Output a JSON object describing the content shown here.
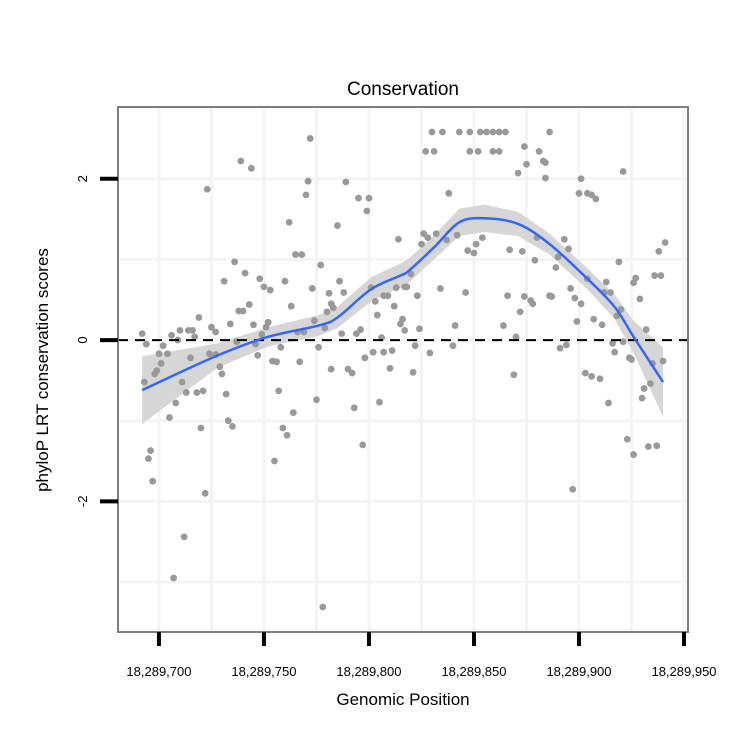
{
  "chart_data": {
    "type": "scatter",
    "title": "Conservation",
    "xlabel": "Genomic Position",
    "ylabel": "phyloP LRT conservation scores",
    "xlim": [
      18289680.5,
      18289951.9
    ],
    "ylim": [
      -3.62,
      2.89
    ],
    "x_ticks": [
      18289700,
      18289750,
      18289800,
      18289850,
      18289900,
      18289950
    ],
    "x_tick_labels": [
      "18,289,700",
      "18,289,750",
      "18,289,800",
      "18,289,850",
      "18,289,900",
      "18,289,950"
    ],
    "y_ticks": [
      -2,
      0,
      2
    ],
    "y_tick_labels": [
      "-2",
      "0",
      "2"
    ],
    "grid": true,
    "reference_line": {
      "y": 0,
      "style": "dashed"
    },
    "colors": {
      "points": "#999999",
      "smooth": "#3366FF",
      "band": "#d4d4d4",
      "refline": "#000000"
    },
    "points_x_base": 18289700,
    "points": [
      [
        -8,
        0.08
      ],
      [
        -6,
        -0.05
      ],
      [
        -7,
        -0.52
      ],
      [
        2,
        -0.07
      ],
      [
        4,
        -0.17
      ],
      [
        0,
        -0.17
      ],
      [
        1,
        -0.29
      ],
      [
        -1,
        -0.38
      ],
      [
        -2,
        -0.42
      ],
      [
        6,
        0.06
      ],
      [
        10,
        0.12
      ],
      [
        9,
        0.0
      ],
      [
        14,
        0.12
      ],
      [
        16,
        0.12
      ],
      [
        17,
        0.04
      ],
      [
        15,
        -0.22
      ],
      [
        11,
        -0.52
      ],
      [
        13,
        -0.65
      ],
      [
        18,
        -0.65
      ],
      [
        21,
        -0.63
      ],
      [
        8,
        -0.78
      ],
      [
        5,
        -0.96
      ],
      [
        -4,
        -1.37
      ],
      [
        -5,
        -1.47
      ],
      [
        -3,
        -1.75
      ],
      [
        20,
        -1.09
      ],
      [
        22,
        -1.9
      ],
      [
        12,
        -2.44
      ],
      [
        7,
        -2.95
      ],
      [
        19,
        0.28
      ],
      [
        23,
        1.87
      ],
      [
        25,
        0.16
      ],
      [
        27,
        0.1
      ],
      [
        24,
        -0.17
      ],
      [
        27,
        -0.18
      ],
      [
        29,
        -0.33
      ],
      [
        30,
        -0.42
      ],
      [
        32,
        -0.67
      ],
      [
        33,
        -1.0
      ],
      [
        35,
        -1.07
      ],
      [
        31,
        0.73
      ],
      [
        36,
        0.97
      ],
      [
        41,
        0.83
      ],
      [
        39,
        2.22
      ],
      [
        44,
        2.13
      ],
      [
        34,
        0.2
      ],
      [
        37,
        -0.02
      ],
      [
        38,
        0.36
      ],
      [
        40,
        0.36
      ],
      [
        43,
        0.44
      ],
      [
        45,
        0.19
      ],
      [
        48,
        0.76
      ],
      [
        50,
        0.66
      ],
      [
        53,
        0.62
      ],
      [
        52,
        0.22
      ],
      [
        51,
        0.16
      ],
      [
        49,
        0.07
      ],
      [
        46,
        -0.05
      ],
      [
        47,
        -0.19
      ],
      [
        54,
        -0.26
      ],
      [
        56,
        -0.27
      ],
      [
        58,
        -0.09
      ],
      [
        57,
        -0.63
      ],
      [
        59,
        -1.09
      ],
      [
        61,
        -1.18
      ],
      [
        55,
        -1.5
      ],
      [
        60,
        0.73
      ],
      [
        62,
        1.46
      ],
      [
        63,
        0.42
      ],
      [
        65,
        1.06
      ],
      [
        68,
        1.06
      ],
      [
        67,
        -0.27
      ],
      [
        66,
        0.1
      ],
      [
        69,
        0.1
      ],
      [
        64,
        -0.9
      ],
      [
        72,
        2.5
      ],
      [
        71,
        1.97
      ],
      [
        70,
        1.8
      ],
      [
        73,
        0.64
      ],
      [
        74,
        0.24
      ],
      [
        76,
        -0.09
      ],
      [
        75,
        -0.74
      ],
      [
        77,
        0.93
      ],
      [
        78,
        -3.31
      ],
      [
        79,
        0.15
      ],
      [
        80,
        0.35
      ],
      [
        81,
        0.58
      ],
      [
        83,
        0.4
      ],
      [
        82,
        0.45
      ],
      [
        85,
        1.42
      ],
      [
        86,
        0.73
      ],
      [
        88,
        0.59
      ],
      [
        87,
        0.08
      ],
      [
        89,
        1.96
      ],
      [
        82,
        -0.36
      ],
      [
        90,
        -0.36
      ],
      [
        92,
        -0.41
      ],
      [
        93,
        -0.84
      ],
      [
        95,
        1.76
      ],
      [
        100,
        1.76
      ],
      [
        99,
        1.6
      ],
      [
        101,
        0.65
      ],
      [
        103,
        0.48
      ],
      [
        104,
        0.31
      ],
      [
        106,
        0.03
      ],
      [
        94,
        0.08
      ],
      [
        96,
        0.13
      ],
      [
        98,
        -0.22
      ],
      [
        102,
        -0.15
      ],
      [
        107,
        -0.15
      ],
      [
        111,
        -0.13
      ],
      [
        110,
        -0.35
      ],
      [
        105,
        -0.77
      ],
      [
        97,
        -1.3
      ],
      [
        107,
        0.55
      ],
      [
        109,
        0.55
      ],
      [
        112,
        0.42
      ],
      [
        113,
        0.65
      ],
      [
        117,
        0.66
      ],
      [
        114,
        1.25
      ],
      [
        116,
        0.26
      ],
      [
        115,
        0.2
      ],
      [
        117,
        0.12
      ],
      [
        130,
        2.58
      ],
      [
        135,
        2.58
      ],
      [
        143,
        2.58
      ],
      [
        148,
        2.58
      ],
      [
        153,
        2.58
      ],
      [
        156,
        2.58
      ],
      [
        159,
        2.58
      ],
      [
        162,
        2.58
      ],
      [
        165,
        2.58
      ],
      [
        186,
        2.58
      ],
      [
        127,
        2.34
      ],
      [
        131,
        2.34
      ],
      [
        148,
        2.34
      ],
      [
        152,
        2.34
      ],
      [
        159,
        2.34
      ],
      [
        162,
        2.34
      ],
      [
        174,
        2.4
      ],
      [
        181,
        2.34
      ],
      [
        175,
        2.18
      ],
      [
        183,
        2.22
      ],
      [
        184,
        2.2
      ],
      [
        171,
        2.07
      ],
      [
        184,
        2.01
      ],
      [
        201,
        2.0
      ],
      [
        221,
        2.09
      ],
      [
        200,
        1.82
      ],
      [
        204,
        1.82
      ],
      [
        206,
        1.8
      ],
      [
        208,
        1.75
      ],
      [
        138,
        1.82
      ],
      [
        126,
        1.32
      ],
      [
        128,
        1.27
      ],
      [
        132,
        1.32
      ],
      [
        125,
        1.19
      ],
      [
        137,
        1.24
      ],
      [
        142,
        1.3
      ],
      [
        154,
        1.27
      ],
      [
        151,
        1.19
      ],
      [
        147,
        1.11
      ],
      [
        150,
        1.08
      ],
      [
        167,
        1.12
      ],
      [
        173,
        1.1
      ],
      [
        179,
        0.99
      ],
      [
        180,
        1.27
      ],
      [
        193,
        1.25
      ],
      [
        195,
        1.13
      ],
      [
        190,
        1.03
      ],
      [
        189,
        0.9
      ],
      [
        120,
        0.82
      ],
      [
        118,
        0.66
      ],
      [
        123,
        0.55
      ],
      [
        134,
        0.64
      ],
      [
        146,
        0.59
      ],
      [
        166,
        0.55
      ],
      [
        174,
        0.54
      ],
      [
        177,
        0.49
      ],
      [
        178,
        0.45
      ],
      [
        186,
        0.55
      ],
      [
        187,
        0.54
      ],
      [
        196,
        0.64
      ],
      [
        198,
        0.52
      ],
      [
        201,
        0.45
      ],
      [
        204,
        0.76
      ],
      [
        213,
        0.72
      ],
      [
        212,
        0.59
      ],
      [
        215,
        0.59
      ],
      [
        219,
        0.97
      ],
      [
        227,
        0.77
      ],
      [
        226,
        0.71
      ],
      [
        229,
        0.51
      ],
      [
        236,
        0.8
      ],
      [
        239,
        0.8
      ],
      [
        238,
        1.1
      ],
      [
        241,
        1.21
      ],
      [
        172,
        0.35
      ],
      [
        164,
        0.18
      ],
      [
        170,
        0.04
      ],
      [
        124,
        0.14
      ],
      [
        141,
        0.18
      ],
      [
        122,
        -0.07
      ],
      [
        129,
        -0.16
      ],
      [
        140,
        -0.07
      ],
      [
        121,
        -0.4
      ],
      [
        169,
        -0.43
      ],
      [
        199,
        0.23
      ],
      [
        207,
        0.26
      ],
      [
        211,
        0.19
      ],
      [
        191,
        -0.1
      ],
      [
        194,
        -0.06
      ],
      [
        218,
        0.3
      ],
      [
        220,
        0.38
      ],
      [
        216,
        -0.04
      ],
      [
        221,
        -0.02
      ],
      [
        217,
        -0.15
      ],
      [
        224,
        -0.22
      ],
      [
        225,
        -0.24
      ],
      [
        232,
        0.13
      ],
      [
        235,
        -0.29
      ],
      [
        240,
        -0.26
      ],
      [
        234,
        -0.54
      ],
      [
        231,
        -0.6
      ],
      [
        230,
        -0.72
      ],
      [
        203,
        -0.41
      ],
      [
        206,
        -0.45
      ],
      [
        210,
        -0.48
      ],
      [
        214,
        -0.78
      ],
      [
        197,
        -1.85
      ],
      [
        223,
        -1.23
      ],
      [
        226,
        -1.42
      ],
      [
        233,
        -1.32
      ],
      [
        237,
        -1.31
      ]
    ],
    "smooth": {
      "method": "loess",
      "x_offsets": [
        -8,
        28,
        52,
        76,
        85,
        101,
        115,
        119,
        131,
        143,
        155,
        171,
        186,
        204,
        217,
        226,
        240
      ],
      "y": [
        -0.62,
        -0.19,
        0.04,
        0.18,
        0.28,
        0.63,
        0.8,
        0.86,
        1.15,
        1.46,
        1.51,
        1.44,
        1.19,
        0.76,
        0.41,
        0.04,
        -0.52
      ],
      "se_halfwidth": [
        0.42,
        0.15,
        0.12,
        0.13,
        0.13,
        0.15,
        0.15,
        0.15,
        0.15,
        0.17,
        0.17,
        0.15,
        0.13,
        0.13,
        0.15,
        0.2,
        0.43
      ]
    }
  }
}
